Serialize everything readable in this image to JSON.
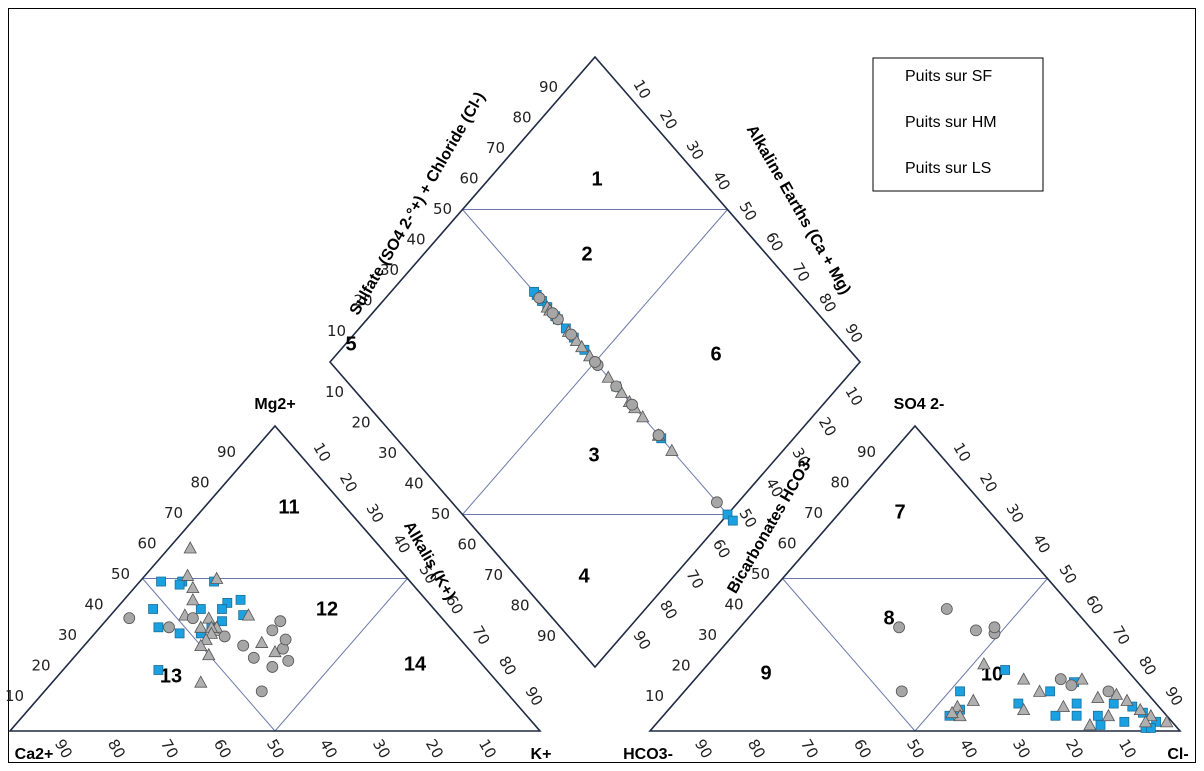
{
  "chart_data": {
    "type": "scatter",
    "subtype": "piper-diagram",
    "legend": {
      "placement": "top-right",
      "entries": [
        {
          "name": "Puits sur SF",
          "marker": "square",
          "color": "#1ba1e2"
        },
        {
          "name": "Puits sur HM",
          "marker": "triangle",
          "color": "#b0b0b0"
        },
        {
          "name": "Puits sur LS",
          "marker": "circle",
          "color": "#a6a6a6"
        }
      ]
    },
    "colors": {
      "frame": "#1f2a44",
      "grid": "#6b7aa8",
      "marker_edge": "#555555"
    },
    "cation_triangle": {
      "vertex_labels": {
        "left": "Ca2+",
        "top": "Mg2+",
        "right": "K+"
      },
      "right_axis_label": "Alkalis (K+)",
      "bottom_ticks": [
        "90",
        "80",
        "70",
        "60",
        "50",
        "40",
        "30",
        "20",
        "10"
      ],
      "left_ticks": [
        "10",
        "20",
        "30",
        "40",
        "50",
        "60",
        "70",
        "80",
        "90"
      ],
      "right_ticks": [
        "10",
        "20",
        "30",
        "40",
        "50",
        "60",
        "70",
        "80",
        "90"
      ],
      "regions": [
        "11",
        "12",
        "13",
        "14"
      ]
    },
    "anion_triangle": {
      "vertex_labels": {
        "left": "HCO3-",
        "top": "SO4 2-",
        "right": "Cl-"
      },
      "left_axis_label": "Bicarbonates HCO3-",
      "bottom_ticks": [
        "90",
        "80",
        "70",
        "60",
        "50",
        "40",
        "30",
        "20",
        "10"
      ],
      "left_ticks": [
        "10",
        "20",
        "30",
        "40",
        "50",
        "60",
        "70",
        "80",
        "90"
      ],
      "right_ticks": [
        "10",
        "20",
        "30",
        "40",
        "50",
        "60",
        "70",
        "80",
        "90"
      ],
      "regions": [
        "7",
        "8",
        "9",
        "10"
      ]
    },
    "diamond": {
      "upper_left_axis_label": "Sulfate (SO4 2-°+) + Chloride (Cl-)",
      "upper_right_axis_label": "Alkaline Earths (Ca + Mg)",
      "upper_left_ticks": [
        "10",
        "20",
        "30",
        "40",
        "50",
        "60",
        "70",
        "80",
        "90"
      ],
      "upper_right_ticks": [
        "90",
        "80",
        "70",
        "60",
        "50",
        "40",
        "30",
        "20",
        "10"
      ],
      "lower_left_ticks": [
        "10",
        "20",
        "30",
        "40",
        "50",
        "60",
        "70",
        "80",
        "90"
      ],
      "lower_right_ticks": [
        "10",
        "20",
        "30",
        "40",
        "50",
        "60",
        "70",
        "80",
        "90"
      ],
      "regions": [
        "1",
        "2",
        "3",
        "4",
        "5",
        "6"
      ]
    },
    "series": [
      {
        "name": "Puits sur SF",
        "cation": [
          [
            47,
            49
          ],
          [
            43,
            49
          ],
          [
            44,
            48
          ],
          [
            37,
            49
          ],
          [
            35,
            43
          ],
          [
            38,
            42
          ],
          [
            40,
            40
          ],
          [
            37,
            38
          ],
          [
            44,
            40
          ],
          [
            42,
            36
          ],
          [
            45,
            34
          ],
          [
            55,
            34
          ],
          [
            52,
            32
          ],
          [
            48,
            32
          ],
          [
            62,
            20
          ],
          [
            53,
            40
          ]
        ],
        "anion": [
          [
            35,
            13
          ],
          [
            38,
            7
          ],
          [
            41,
            5
          ],
          [
            23,
            20
          ],
          [
            18,
            13
          ],
          [
            17,
            5
          ],
          [
            15,
            9
          ],
          [
            13,
            5
          ],
          [
            12,
            16
          ],
          [
            8,
            9
          ],
          [
            5,
            8
          ],
          [
            4,
            6
          ],
          [
            3,
            3
          ],
          [
            6,
            1
          ],
          [
            9,
            3
          ],
          [
            5,
            1
          ],
          [
            21,
            5
          ],
          [
            26,
            9
          ],
          [
            14,
            2
          ]
        ],
        "diamond": [
          [
            81,
            41
          ],
          [
            78,
            45
          ],
          [
            79,
            36
          ],
          [
            72,
            32
          ],
          [
            69,
            39
          ],
          [
            65,
            27
          ],
          [
            52,
            23
          ],
          [
            41,
            9
          ],
          [
            39,
            9
          ],
          [
            72,
            42
          ],
          [
            84,
            36
          ],
          [
            86,
            32
          ],
          [
            73,
            38
          ]
        ]
      },
      {
        "name": "Puits sur HM",
        "cation": [
          [
            36,
            60
          ],
          [
            41,
            51
          ],
          [
            36,
            50
          ],
          [
            42,
            47
          ],
          [
            44,
            43
          ],
          [
            36,
            38
          ],
          [
            44,
            37
          ],
          [
            47,
            34
          ],
          [
            45,
            33
          ],
          [
            38,
            29
          ],
          [
            37,
            26
          ],
          [
            50,
            25
          ],
          [
            56,
            16
          ],
          [
            44,
            34
          ],
          [
            48,
            38
          ],
          [
            45,
            34
          ],
          [
            46,
            32
          ],
          [
            48,
            30
          ],
          [
            50,
            28
          ]
        ],
        "anion": [
          [
            34,
            10
          ],
          [
            38,
            8
          ],
          [
            39,
            5
          ],
          [
            26,
            22
          ],
          [
            21,
            17
          ],
          [
            20,
            13
          ],
          [
            18,
            8
          ],
          [
            10,
            17
          ],
          [
            10,
            11
          ],
          [
            6,
            12
          ],
          [
            5,
            10
          ],
          [
            4,
            7
          ],
          [
            3,
            5
          ],
          [
            1,
            3
          ],
          [
            5,
            3
          ],
          [
            11,
            5
          ],
          [
            16,
            2
          ],
          [
            26,
            7
          ],
          [
            40,
            6
          ]
        ],
        "diamond": [
          [
            86,
            32
          ],
          [
            84,
            33
          ],
          [
            82,
            35
          ],
          [
            80,
            37
          ],
          [
            76,
            31
          ],
          [
            72,
            38
          ],
          [
            73,
            29
          ],
          [
            68,
            37
          ],
          [
            64,
            31
          ],
          [
            61,
            24
          ],
          [
            47,
            29
          ],
          [
            53,
            34
          ],
          [
            51,
            39
          ],
          [
            47,
            35
          ],
          [
            43,
            33
          ],
          [
            46,
            25
          ]
        ]
      },
      {
        "name": "Puits sur LS",
        "cation": [
          [
            47,
            37
          ],
          [
            44,
            31
          ],
          [
            42,
            28
          ],
          [
            42,
            24
          ],
          [
            36,
            23
          ],
          [
            35,
            27
          ],
          [
            31,
            36
          ],
          [
            33,
            30
          ],
          [
            40,
            21
          ],
          [
            46,
            13
          ],
          [
            59,
            37
          ],
          [
            53,
            34
          ],
          [
            34,
            33
          ]
        ],
        "anion": [
          [
            46,
            13
          ],
          [
            36,
            34
          ],
          [
            24,
            40
          ],
          [
            22,
            33
          ],
          [
            19,
            32
          ],
          [
            18,
            34
          ],
          [
            14,
            17
          ],
          [
            13,
            15
          ],
          [
            7,
            13
          ]
        ],
        "diamond": [
          [
            85,
            36
          ],
          [
            82,
            32
          ],
          [
            79,
            37
          ],
          [
            71,
            38
          ],
          [
            68,
            32
          ],
          [
            64,
            35
          ],
          [
            55,
            31
          ],
          [
            45,
            31
          ],
          [
            45,
            31
          ],
          [
            36,
            18
          ],
          [
            70,
            30
          ],
          [
            62,
            30
          ]
        ]
      }
    ]
  }
}
